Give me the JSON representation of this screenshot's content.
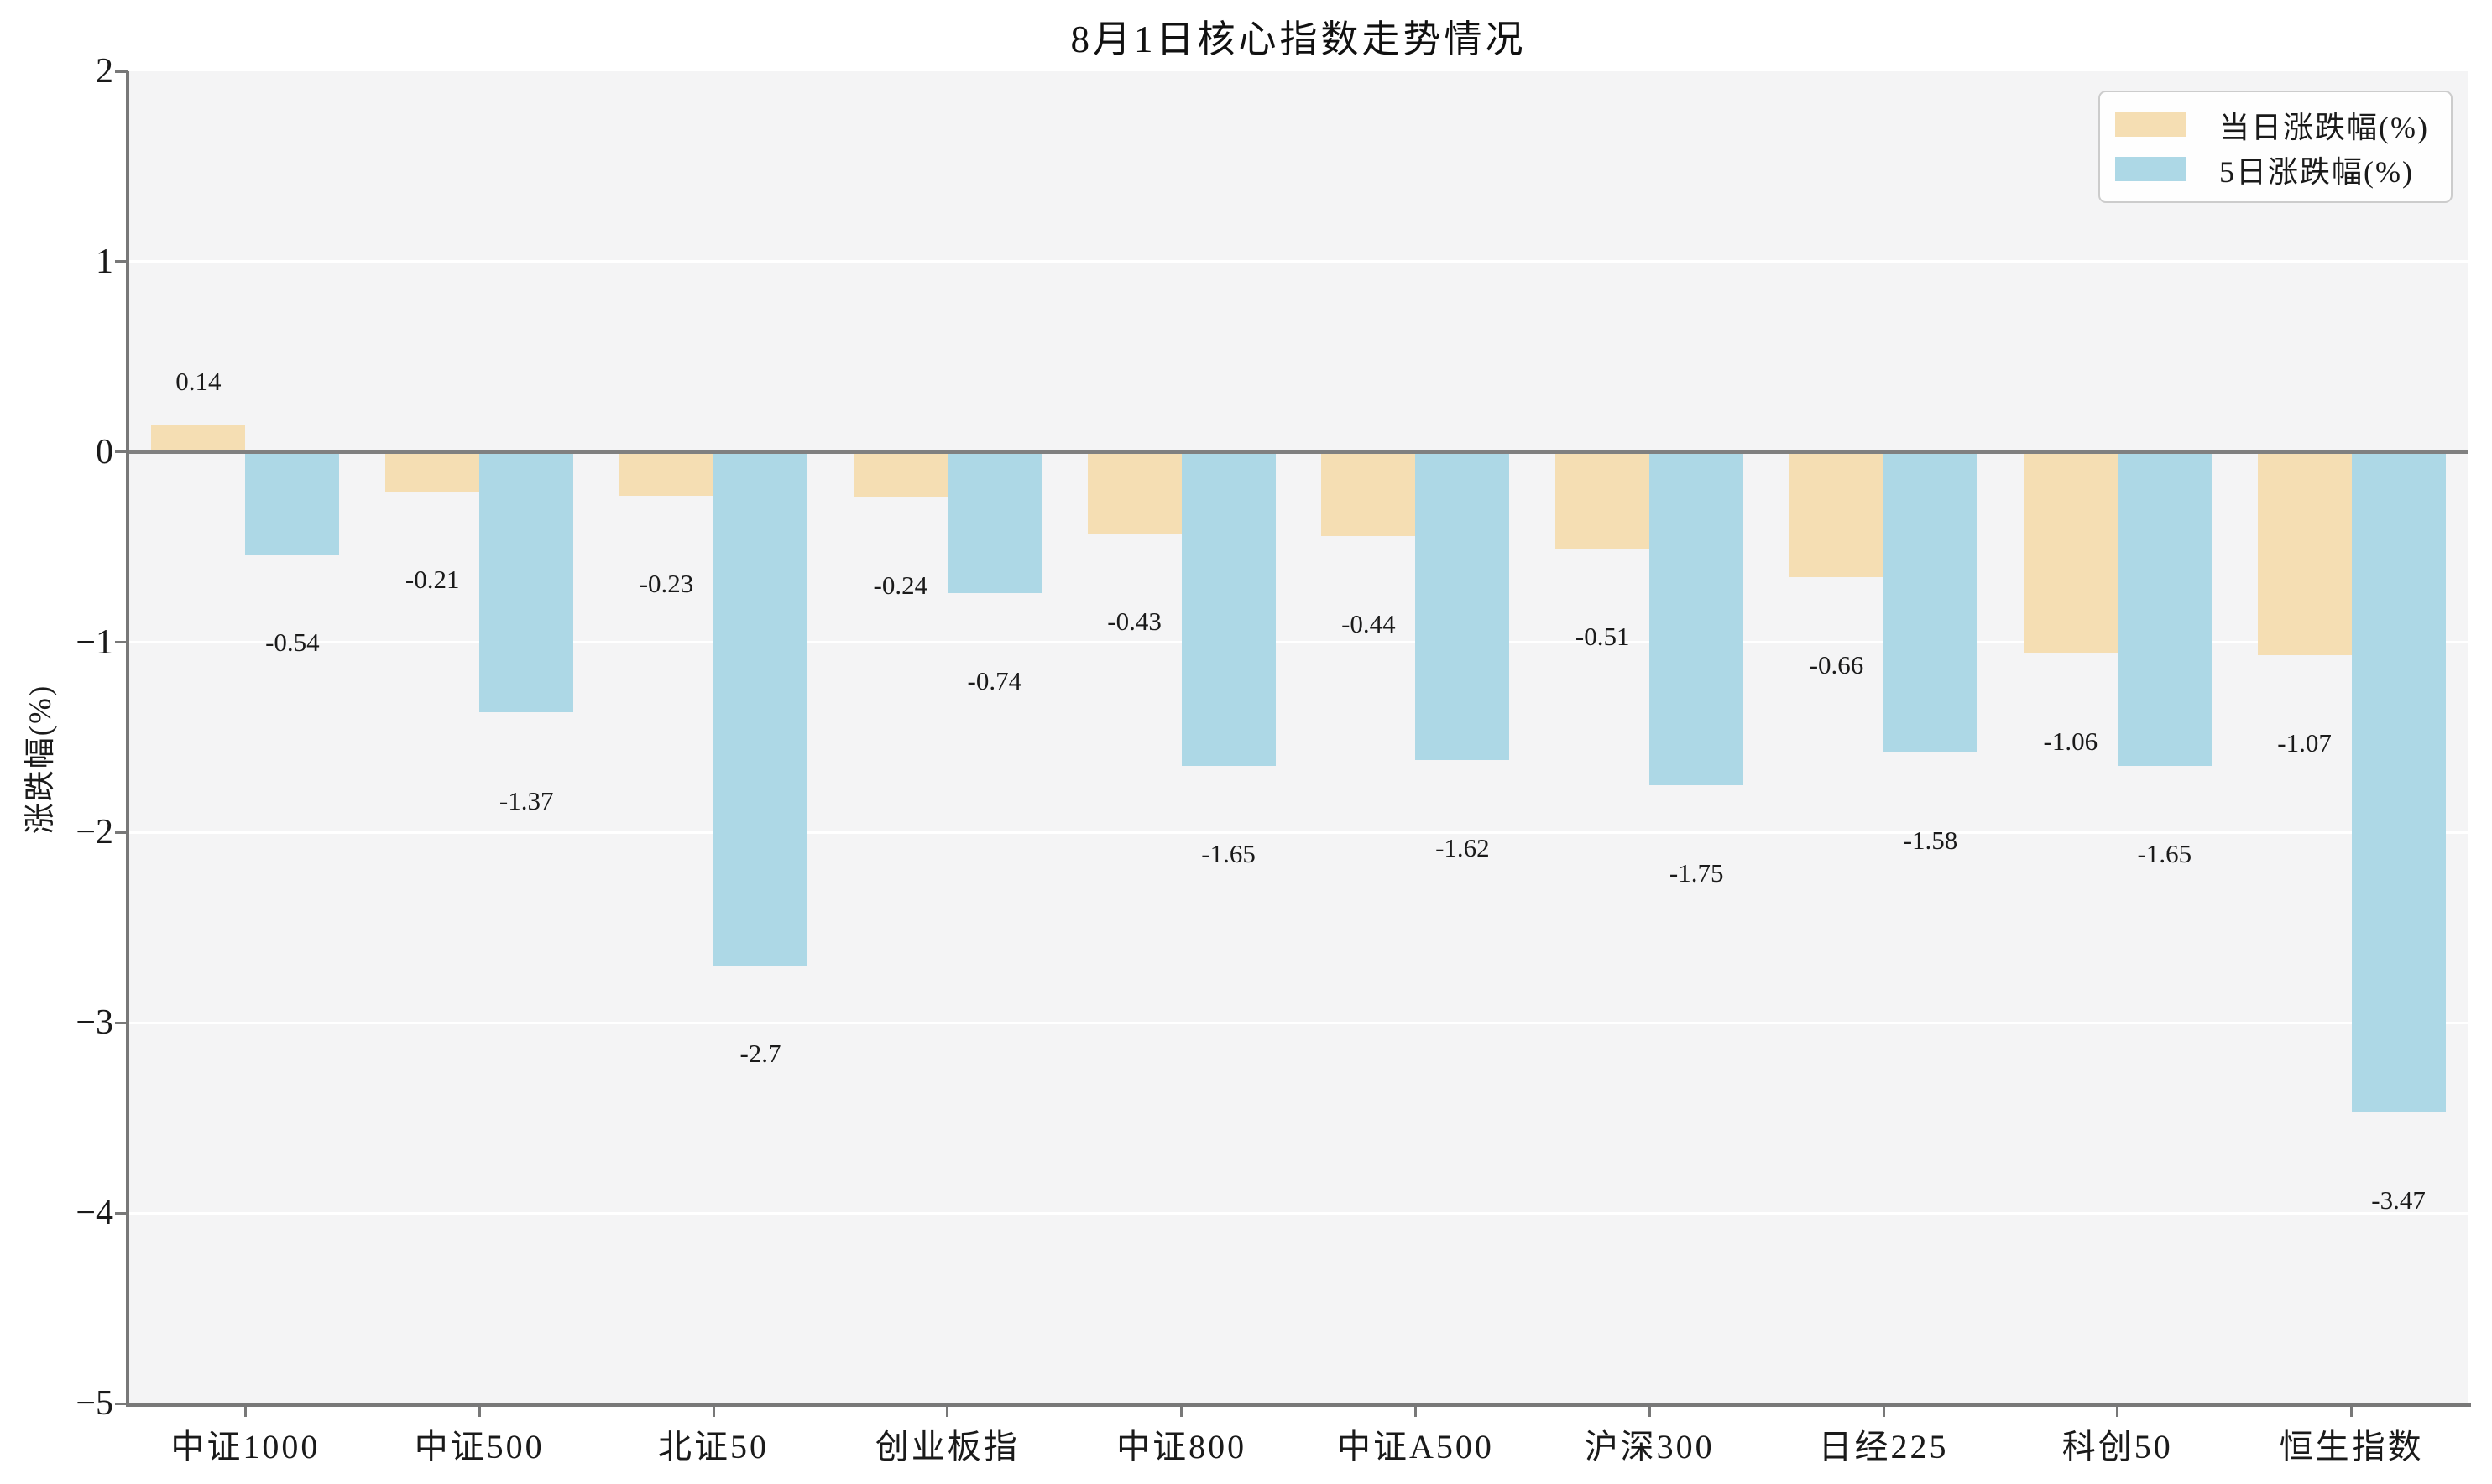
{
  "title": "8月1日核心指数走势情况",
  "y_axis": {
    "label": "涨跌幅(%)",
    "ticks": [
      {
        "value": 2,
        "label": "2"
      },
      {
        "value": 1,
        "label": "1"
      },
      {
        "value": 0,
        "label": "0"
      },
      {
        "value": -1,
        "label": "−1"
      },
      {
        "value": -2,
        "label": "−2"
      },
      {
        "value": -3,
        "label": "−3"
      },
      {
        "value": -4,
        "label": "−4"
      },
      {
        "value": -5,
        "label": "−5"
      }
    ]
  },
  "legend": {
    "items": [
      {
        "label": "当日涨跌幅(%)",
        "color": "#f5deb3"
      },
      {
        "label": "5日涨跌幅(%)",
        "color": "#add8e6"
      }
    ]
  },
  "colors": {
    "daily_bar": "#f5deb3",
    "five_day_bar": "#add8e6",
    "plot_background": "#f4f4f5",
    "axis_gray": "#787878",
    "zero_line": "#808080",
    "gridline": "#ffffff"
  },
  "chart_data": {
    "type": "bar",
    "title": "8月1日核心指数走势情况",
    "xlabel": "",
    "ylabel": "涨跌幅(%)",
    "ylim": [
      -5,
      2
    ],
    "grid": true,
    "legend_position": "upper right",
    "categories": [
      "中证1000",
      "中证500",
      "北证50",
      "创业板指",
      "中证800",
      "中证A500",
      "沪深300",
      "日经225",
      "科创50",
      "恒生指数"
    ],
    "series": [
      {
        "name": "当日涨跌幅(%)",
        "color": "#f5deb3",
        "values": [
          0.14,
          -0.21,
          -0.23,
          -0.24,
          -0.43,
          -0.44,
          -0.51,
          -0.66,
          -1.06,
          -1.07
        ]
      },
      {
        "name": "5日涨跌幅(%)",
        "color": "#add8e6",
        "values": [
          -0.54,
          -1.37,
          -2.7,
          -0.74,
          -1.65,
          -1.62,
          -1.75,
          -1.58,
          -1.65,
          -3.47
        ]
      }
    ]
  }
}
